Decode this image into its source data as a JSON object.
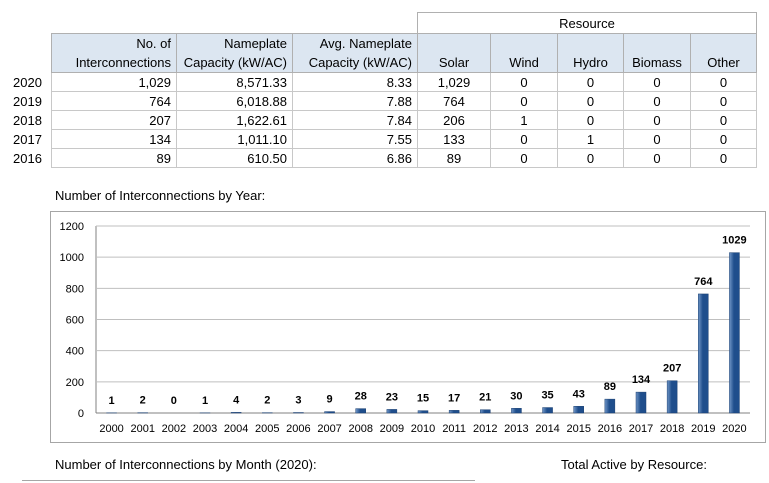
{
  "table": {
    "resource_header": "Resource",
    "headers": {
      "interconnections": [
        "No. of",
        "Interconnections"
      ],
      "capacity": [
        "Nameplate",
        "Capacity (kW/AC)"
      ],
      "avg_capacity": [
        "Avg. Nameplate",
        "Capacity (kW/AC)"
      ],
      "solar": "Solar",
      "wind": "Wind",
      "hydro": "Hydro",
      "biomass": "Biomass",
      "other": "Other"
    },
    "rows": [
      {
        "year": "2020",
        "interconnections": "1,029",
        "capacity": "8,571.33",
        "avg": "8.33",
        "solar": "1,029",
        "wind": "0",
        "hydro": "0",
        "biomass": "0",
        "other": "0"
      },
      {
        "year": "2019",
        "interconnections": "764",
        "capacity": "6,018.88",
        "avg": "7.88",
        "solar": "764",
        "wind": "0",
        "hydro": "0",
        "biomass": "0",
        "other": "0"
      },
      {
        "year": "2018",
        "interconnections": "207",
        "capacity": "1,622.61",
        "avg": "7.84",
        "solar": "206",
        "wind": "1",
        "hydro": "0",
        "biomass": "0",
        "other": "0"
      },
      {
        "year": "2017",
        "interconnections": "134",
        "capacity": "1,011.10",
        "avg": "7.55",
        "solar": "133",
        "wind": "0",
        "hydro": "1",
        "biomass": "0",
        "other": "0"
      },
      {
        "year": "2016",
        "interconnections": "89",
        "capacity": "610.50",
        "avg": "6.86",
        "solar": "89",
        "wind": "0",
        "hydro": "0",
        "biomass": "0",
        "other": "0"
      }
    ]
  },
  "titles": {
    "by_year": "Number of Interconnections by Year:",
    "by_month": "Number of Interconnections by Month (2020):",
    "total_active": "Total Active by Resource:"
  },
  "chart_data": {
    "type": "bar",
    "categories": [
      "2000",
      "2001",
      "2002",
      "2003",
      "2004",
      "2005",
      "2006",
      "2007",
      "2008",
      "2009",
      "2010",
      "2011",
      "2012",
      "2013",
      "2014",
      "2015",
      "2016",
      "2017",
      "2018",
      "2019",
      "2020"
    ],
    "values": [
      1,
      2,
      0,
      1,
      4,
      2,
      3,
      9,
      28,
      23,
      15,
      17,
      21,
      30,
      35,
      43,
      89,
      134,
      207,
      764,
      1029
    ],
    "ylim": [
      0,
      1200
    ],
    "yticks": [
      0,
      200,
      400,
      600,
      800,
      1000,
      1200
    ],
    "grid": true,
    "bar_color": "#1f4e8c",
    "bar_color_light": "#6f95c6",
    "grid_color": "#bfbfbf"
  }
}
